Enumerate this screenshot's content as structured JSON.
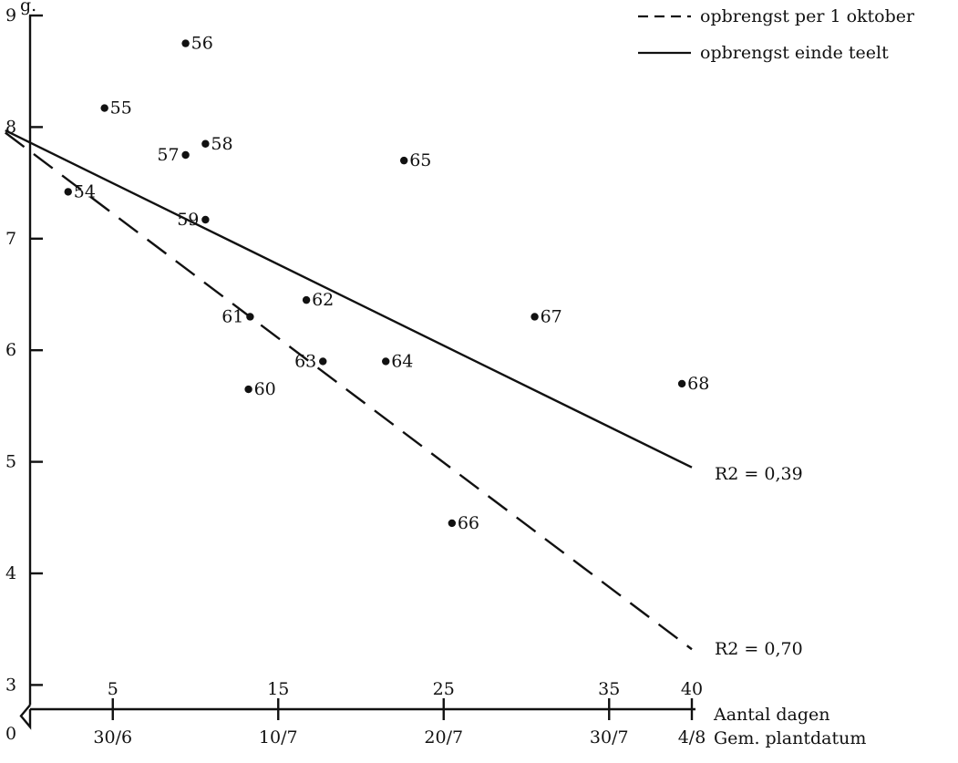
{
  "chart_data": {
    "type": "scatter",
    "ylabel": "g.",
    "y_ticks": [
      "0",
      "3",
      "4",
      "5",
      "6",
      "7",
      "8",
      "9"
    ],
    "y_break": true,
    "ylim": [
      3,
      9
    ],
    "xlim": [
      0,
      40
    ],
    "x_ticks_top": [
      5,
      15,
      25,
      35,
      40
    ],
    "x_ticks_bottom": [
      "30/6",
      "10/7",
      "20/7",
      "30/7",
      "4/8"
    ],
    "x_ticks_bottom_positions": [
      5,
      15,
      25,
      35,
      40
    ],
    "xlabel_top": "Aantal dagen",
    "xlabel_bottom": "Gem. plantdatum",
    "points": [
      {
        "label": "54",
        "x": 2.3,
        "y": 7.42
      },
      {
        "label": "55",
        "x": 4.5,
        "y": 8.17
      },
      {
        "label": "56",
        "x": 9.4,
        "y": 8.75
      },
      {
        "label": "57",
        "x": 9.4,
        "y": 7.75
      },
      {
        "label": "58",
        "x": 10.6,
        "y": 7.85
      },
      {
        "label": "59",
        "x": 10.6,
        "y": 7.17
      },
      {
        "label": "60",
        "x": 13.2,
        "y": 5.65
      },
      {
        "label": "61",
        "x": 13.3,
        "y": 6.3
      },
      {
        "label": "62",
        "x": 16.7,
        "y": 6.45
      },
      {
        "label": "63",
        "x": 17.7,
        "y": 5.9
      },
      {
        "label": "64",
        "x": 21.5,
        "y": 5.9
      },
      {
        "label": "65",
        "x": 22.6,
        "y": 7.7
      },
      {
        "label": "66",
        "x": 25.5,
        "y": 4.45
      },
      {
        "label": "67",
        "x": 30.5,
        "y": 6.3
      },
      {
        "label": "68",
        "x": 39.4,
        "y": 5.7
      }
    ],
    "series": [
      {
        "name": "opbrengst per 1 oktober",
        "style": "dashed",
        "start": [
          -1.5,
          7.95
        ],
        "end": [
          40,
          3.32
        ],
        "r2": "R2 = 0,70"
      },
      {
        "name": "opbrengst einde teelt",
        "style": "solid",
        "start": [
          -1.5,
          7.97
        ],
        "end": [
          40,
          4.95
        ],
        "r2": "R2 = 0,39"
      }
    ],
    "legend_position": "top-right",
    "grid": false,
    "colors": {
      "ink": "#111111",
      "background": "#ffffff"
    }
  }
}
